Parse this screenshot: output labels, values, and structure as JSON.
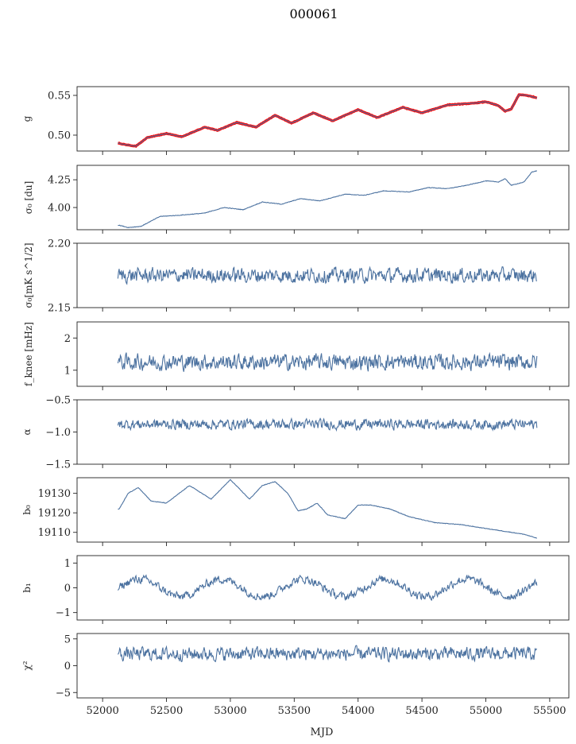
{
  "title": "000061",
  "colors": {
    "series": "#4c72a0",
    "highlight": "#ff0000"
  },
  "chart_data": {
    "type": "line",
    "xlabel": "MJD",
    "xlim": [
      51800,
      55650
    ],
    "xticks": [
      52000,
      52500,
      53000,
      53500,
      54000,
      54500,
      55000,
      55500
    ],
    "xtick_labels": [
      "52000",
      "52500",
      "53000",
      "53500",
      "54000",
      "54500",
      "55000",
      "55500"
    ],
    "x_range": [
      52120,
      55400
    ],
    "panels": [
      {
        "id": "g",
        "ylabel": "g",
        "ylim": [
          0.48,
          0.561
        ],
        "yticks": [
          0.5,
          0.55
        ],
        "ytick_labels": [
          "0.50",
          "0.55"
        ],
        "series": [
          {
            "color": "#4c72a0",
            "highlight": true,
            "x": [
              52120,
              52180,
              52260,
              52350,
              52500,
              52620,
              52800,
              52900,
              53050,
              53200,
              53350,
              53480,
              53650,
              53800,
              54000,
              54150,
              54350,
              54500,
              54700,
              54900,
              55000,
              55100,
              55150,
              55200,
              55260,
              55320,
              55400
            ],
            "y": [
              0.49,
              0.488,
              0.486,
              0.497,
              0.502,
              0.498,
              0.51,
              0.506,
              0.516,
              0.51,
              0.525,
              0.515,
              0.528,
              0.518,
              0.532,
              0.522,
              0.535,
              0.528,
              0.538,
              0.54,
              0.542,
              0.537,
              0.53,
              0.533,
              0.551,
              0.55,
              0.547
            ]
          }
        ]
      },
      {
        "id": "sigma0_du",
        "ylabel": "σ₀ [du]",
        "ylim": [
          3.8,
          4.38
        ],
        "yticks": [
          4.0,
          4.25
        ],
        "ytick_labels": [
          "4.00",
          "4.25"
        ],
        "series": [
          {
            "color": "#4c72a0",
            "x": [
              52130,
              52200,
              52300,
              52450,
              52600,
              52800,
              52950,
              53100,
              53250,
              53400,
              53550,
              53700,
              53900,
              54050,
              54200,
              54400,
              54550,
              54700,
              54850,
              55000,
              55100,
              55150,
              55200,
              55300,
              55360,
              55400
            ],
            "y": [
              3.84,
              3.82,
              3.83,
              3.92,
              3.93,
              3.95,
              4.0,
              3.98,
              4.05,
              4.03,
              4.08,
              4.06,
              4.12,
              4.11,
              4.15,
              4.14,
              4.18,
              4.17,
              4.2,
              4.24,
              4.23,
              4.26,
              4.2,
              4.23,
              4.32,
              4.33
            ]
          }
        ]
      },
      {
        "id": "sigma0_mk",
        "ylabel": "σ₀[mK s^1/2]",
        "ylim": [
          2.15,
          2.2
        ],
        "yticks": [
          2.15,
          2.2
        ],
        "ytick_labels": [
          "2.15",
          "2.20"
        ],
        "series": [
          {
            "color": "#4c72a0",
            "noise": {
              "mean": 2.175,
              "amp": 0.005
            }
          }
        ]
      },
      {
        "id": "f_knee",
        "ylabel": "f_knee [mHz]",
        "ylim": [
          0.5,
          2.5
        ],
        "yticks": [
          1,
          2
        ],
        "ytick_labels": [
          "1",
          "2"
        ],
        "series": [
          {
            "color": "#4c72a0",
            "noise": {
              "mean": 1.25,
              "amp": 0.22
            }
          }
        ]
      },
      {
        "id": "alpha",
        "ylabel": "α",
        "ylim": [
          -1.5,
          -0.5
        ],
        "yticks": [
          -1.5,
          -1.0,
          -0.5
        ],
        "ytick_labels": [
          "−1.5",
          "−1.0",
          "−0.5"
        ],
        "series": [
          {
            "color": "#4c72a0",
            "noise": {
              "mean": -0.88,
              "amp": 0.07
            }
          }
        ]
      },
      {
        "id": "b0",
        "ylabel": "b₀",
        "ylim": [
          19105,
          19138
        ],
        "yticks": [
          19110,
          19120,
          19130
        ],
        "ytick_labels": [
          "19110",
          "19120",
          "19130"
        ],
        "series": [
          {
            "color": "#4c72a0",
            "x": [
              52130,
              52200,
              52280,
              52380,
              52500,
              52680,
              52850,
              53000,
              53150,
              53250,
              53350,
              53450,
              53530,
              53600,
              53680,
              53760,
              53900,
              54000,
              54100,
              54250,
              54400,
              54600,
              54800,
              55000,
              55200,
              55300,
              55400
            ],
            "y": [
              19122,
              19130,
              19133,
              19126,
              19125,
              19134,
              19127,
              19137,
              19127,
              19134,
              19136,
              19130,
              19121,
              19122,
              19125,
              19119,
              19117,
              19124,
              19124,
              19122,
              19118,
              19115,
              19114,
              19112,
              19110,
              19109,
              19107
            ]
          }
        ]
      },
      {
        "id": "b1",
        "ylabel": "b₁",
        "ylim": [
          -1.3,
          1.3
        ],
        "yticks": [
          -1,
          0,
          1
        ],
        "ytick_labels": [
          "−1",
          "0",
          "1"
        ],
        "series": [
          {
            "color": "#4c72a0",
            "noise": {
              "mean": 0.0,
              "amp": 0.15
            }
          }
        ]
      },
      {
        "id": "chi2",
        "ylabel": "χ²",
        "ylim": [
          -6,
          6
        ],
        "yticks": [
          -5,
          0,
          5
        ],
        "ytick_labels": [
          "−5",
          "0",
          "5"
        ],
        "series": [
          {
            "color": "#4c72a0",
            "noise": {
              "mean": 2.2,
              "amp": 1.1
            }
          }
        ]
      }
    ]
  }
}
